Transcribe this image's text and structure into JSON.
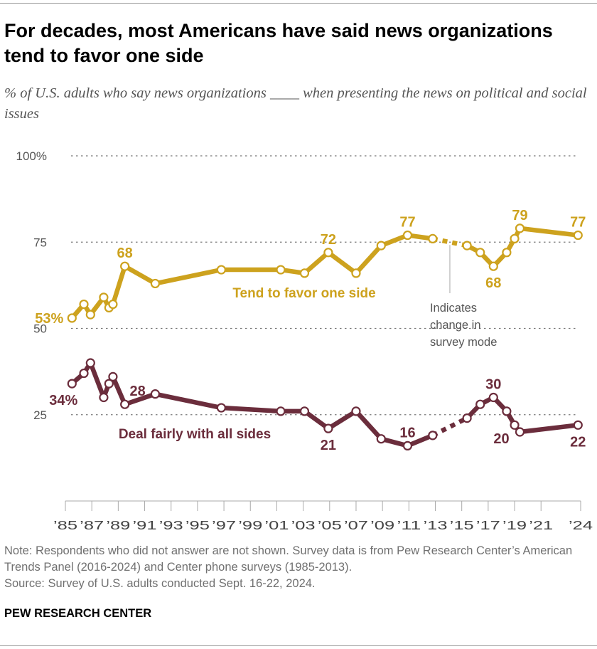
{
  "title": "For decades, most Americans have said news organizations tend to favor one side",
  "subtitle": "% of U.S. adults who say news organizations ____ when presenting the news on political and social issues",
  "note": "Note: Respondents who did not answer are not shown. Survey data is from Pew Research Center’s American Trends Panel (2016-2024) and Center phone surveys (1985-2013).",
  "source": "Source: Survey of U.S. adults conducted Sept. 16-22, 2024.",
  "brand": "PEW RESEARCH CENTER",
  "chart_data": {
    "type": "line",
    "ylim": [
      0,
      100
    ],
    "xlim": [
      1985,
      2024
    ],
    "grid": true,
    "y_ticks": [
      {
        "value": 100,
        "label": "100%"
      },
      {
        "value": 75,
        "label": "75"
      },
      {
        "value": 50,
        "label": "50"
      },
      {
        "value": 25,
        "label": "25"
      }
    ],
    "x_ticks": [
      {
        "value": 1985,
        "label": "’85"
      },
      {
        "value": 1987,
        "label": "’87"
      },
      {
        "value": 1989,
        "label": "’89"
      },
      {
        "value": 1991,
        "label": "’91"
      },
      {
        "value": 1993,
        "label": "’93"
      },
      {
        "value": 1995,
        "label": "’95"
      },
      {
        "value": 1997,
        "label": "’97"
      },
      {
        "value": 1999,
        "label": "’99"
      },
      {
        "value": 2001,
        "label": "’01"
      },
      {
        "value": 2003,
        "label": "’03"
      },
      {
        "value": 2005,
        "label": "’05"
      },
      {
        "value": 2007,
        "label": "’07"
      },
      {
        "value": 2009,
        "label": "’09"
      },
      {
        "value": 2011,
        "label": "’11"
      },
      {
        "value": 2013,
        "label": "’13"
      },
      {
        "value": 2015,
        "label": "’15"
      },
      {
        "value": 2017,
        "label": "’17"
      },
      {
        "value": 2019,
        "label": "’19"
      },
      {
        "value": 2021,
        "label": "’21"
      },
      {
        "value": 2024,
        "label": "’24"
      }
    ],
    "x": [
      1985.5,
      1986.4,
      1986.9,
      1987.9,
      1988.3,
      1988.6,
      1989.5,
      1991.8,
      1996.8,
      2001.3,
      2003.1,
      2004.9,
      2007.0,
      2008.9,
      2010.9,
      2012.8,
      2015.4,
      2016.4,
      2017.4,
      2018.4,
      2019.0,
      2019.4,
      2023.8
    ],
    "mode_change_after_index": 15,
    "annotation": "Indicates change in survey mode",
    "series": [
      {
        "name": "Tend to favor one side",
        "color": "#CDA21E",
        "values": [
          53,
          57,
          54,
          59,
          56,
          57,
          68,
          63,
          67,
          67,
          66,
          72,
          66,
          74,
          77,
          76,
          74,
          72,
          68,
          72,
          76,
          79,
          77
        ],
        "labels": [
          {
            "i": 0,
            "text": "53%",
            "pos": "left"
          },
          {
            "i": 6,
            "text": "68",
            "pos": "above"
          },
          {
            "i": 11,
            "text": "72",
            "pos": "above"
          },
          {
            "i": 14,
            "text": "77",
            "pos": "above"
          },
          {
            "i": 18,
            "text": "68",
            "pos": "below"
          },
          {
            "i": 21,
            "text": "79",
            "pos": "above"
          },
          {
            "i": 22,
            "text": "77",
            "pos": "above"
          }
        ]
      },
      {
        "name": "Deal fairly with all sides",
        "color": "#6B2D3C",
        "values": [
          34,
          37,
          40,
          30,
          34,
          36,
          28,
          31,
          27,
          26,
          26,
          21,
          26,
          18,
          16,
          19,
          24,
          28,
          30,
          26,
          22,
          20,
          22
        ],
        "labels": [
          {
            "i": 0,
            "text": "34%",
            "pos": "left-below"
          },
          {
            "i": 6,
            "text": "28",
            "pos": "above-right"
          },
          {
            "i": 11,
            "text": "21",
            "pos": "below"
          },
          {
            "i": 14,
            "text": "16",
            "pos": "above"
          },
          {
            "i": 18,
            "text": "30",
            "pos": "above"
          },
          {
            "i": 21,
            "text": "20",
            "pos": "below-left"
          },
          {
            "i": 22,
            "text": "22",
            "pos": "below"
          }
        ]
      }
    ]
  }
}
